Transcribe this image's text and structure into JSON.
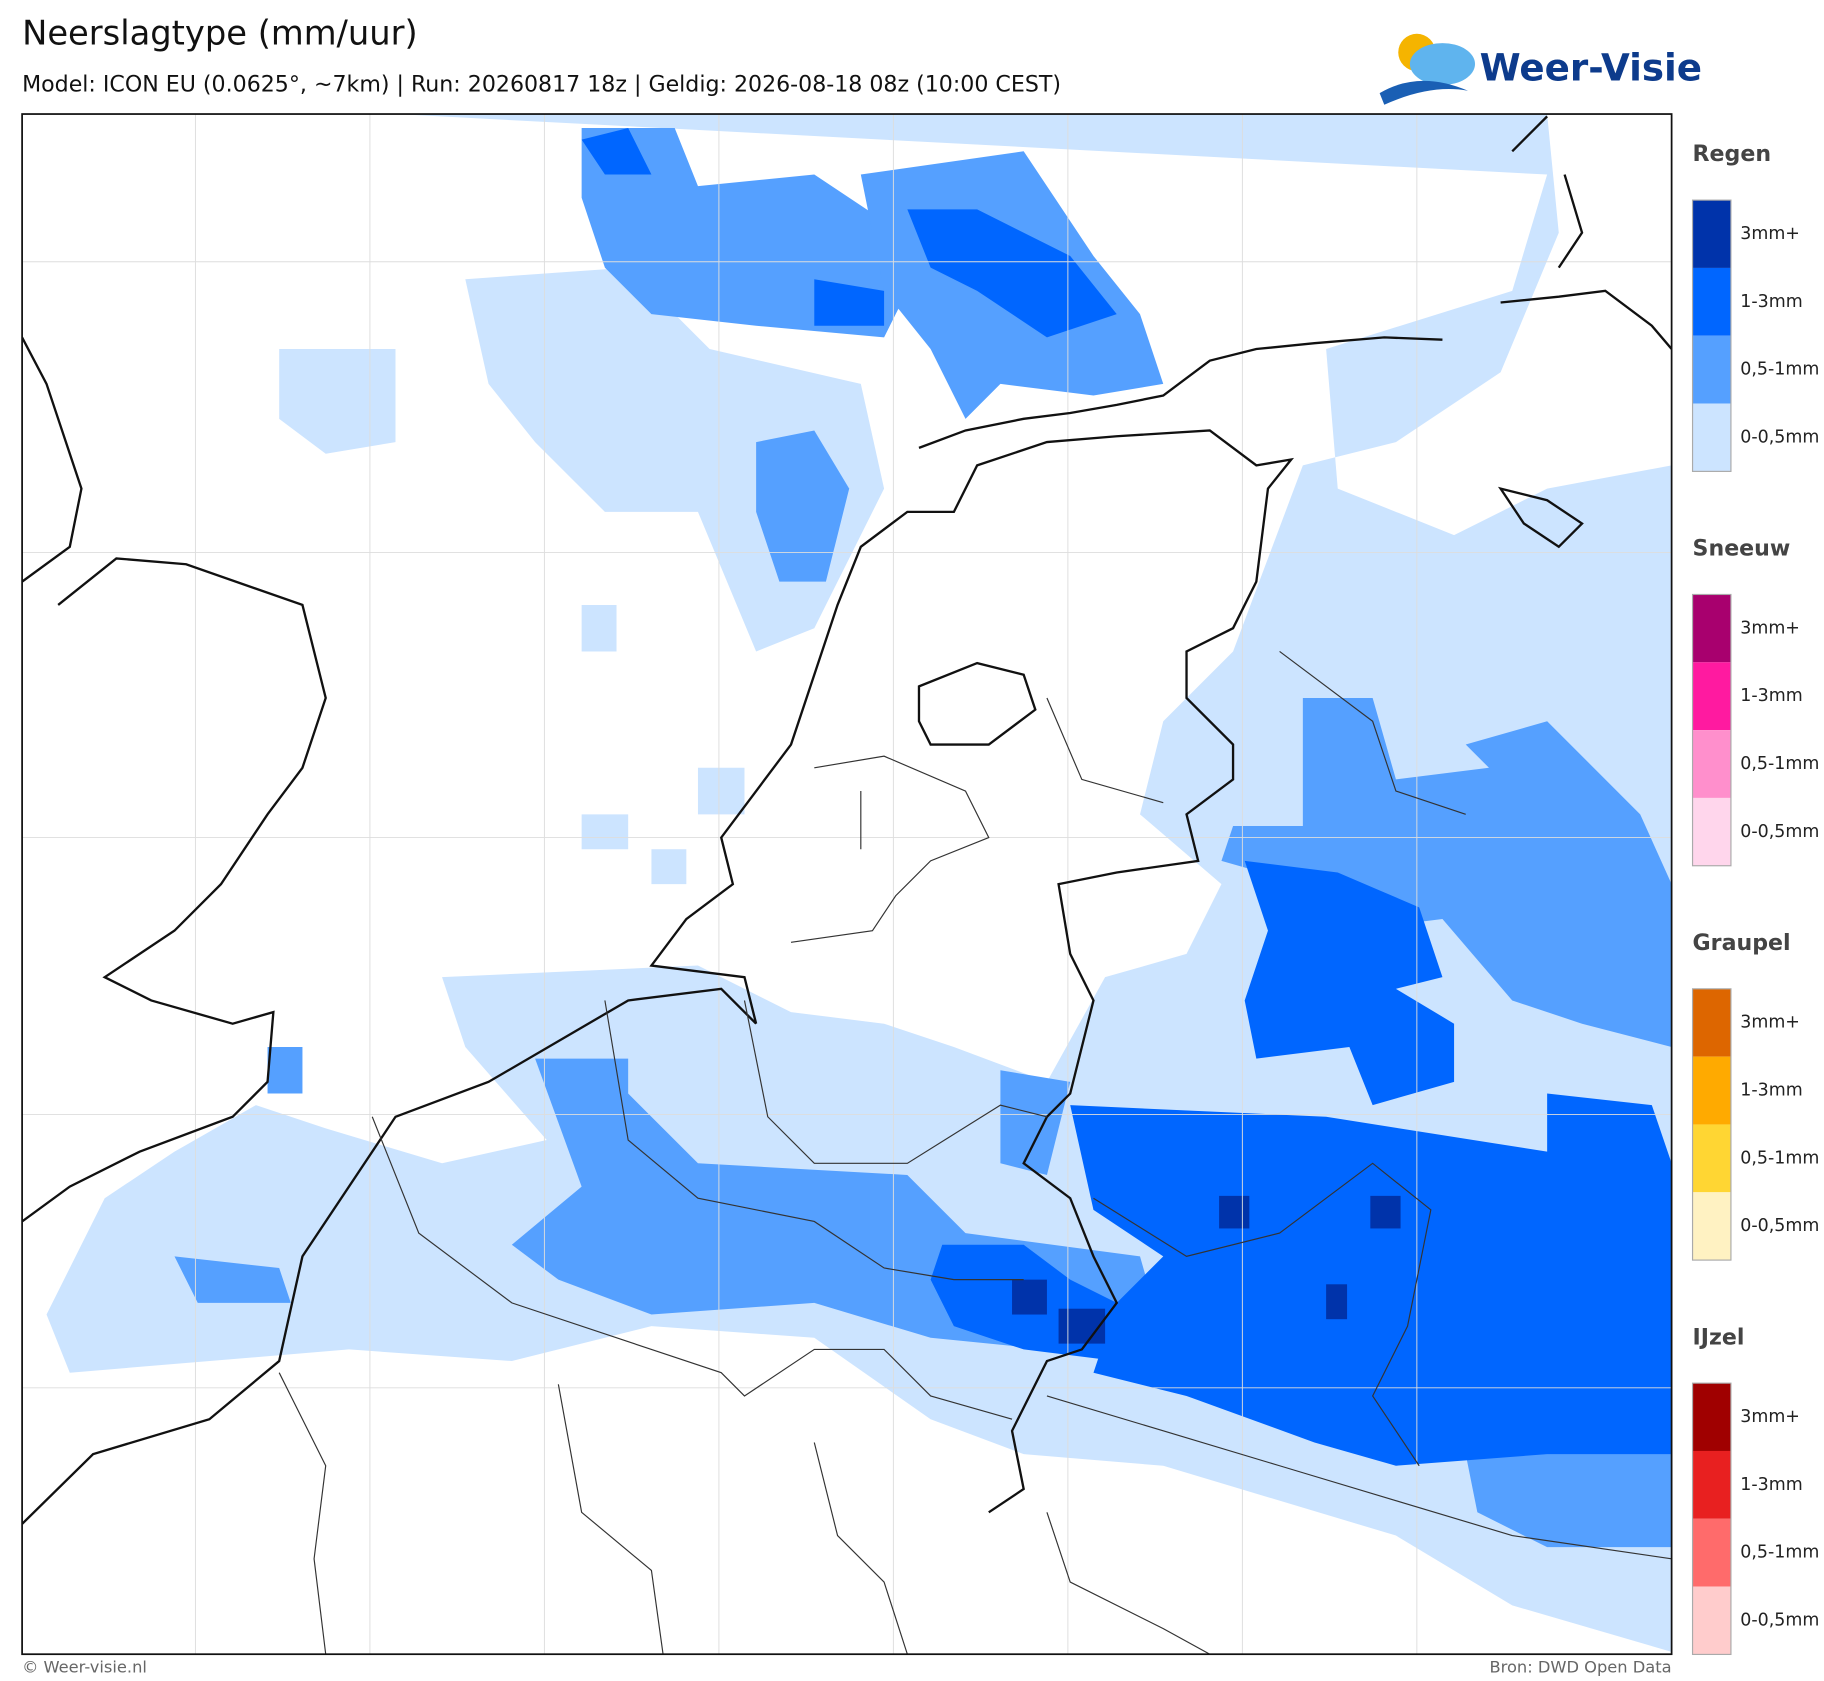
{
  "header": {
    "title": "Neerslagtype (mm/uur)",
    "subtitle": "Model: ICON EU (0.0625°, ~7km)  |  Run: 20260817 18z  |  Geldig: 2026-08-18 08z (10:00 CEST)"
  },
  "logo": {
    "text": "Weer-Visie"
  },
  "legend": [
    {
      "title": "Regen",
      "items": [
        {
          "label": "3mm+",
          "color": "#0033aa"
        },
        {
          "label": "1-3mm",
          "color": "#0066ff"
        },
        {
          "label": "0,5-1mm",
          "color": "#55a0ff"
        },
        {
          "label": "0-0,5mm",
          "color": "#cce4ff"
        }
      ]
    },
    {
      "title": "Sneeuw",
      "items": [
        {
          "label": "3mm+",
          "color": "#a8006e"
        },
        {
          "label": "1-3mm",
          "color": "#ff1aa0"
        },
        {
          "label": "0,5-1mm",
          "color": "#ff8fcc"
        },
        {
          "label": "0-0,5mm",
          "color": "#ffd6ec"
        }
      ]
    },
    {
      "title": "Graupel",
      "items": [
        {
          "label": "3mm+",
          "color": "#dd6600"
        },
        {
          "label": "1-3mm",
          "color": "#ffaa00"
        },
        {
          "label": "0,5-1mm",
          "color": "#ffd633"
        },
        {
          "label": "0-0,5mm",
          "color": "#fff2c2"
        }
      ]
    },
    {
      "title": "IJzel",
      "items": [
        {
          "label": "3mm+",
          "color": "#a00000"
        },
        {
          "label": "1-3mm",
          "color": "#e82020"
        },
        {
          "label": "0,5-1mm",
          "color": "#ff6b6b"
        },
        {
          "label": "0-0,5mm",
          "color": "#ffcccc"
        }
      ]
    }
  ],
  "footer": {
    "left": "© Weer-visie.nl",
    "right": "Bron: DWD Open Data"
  }
}
